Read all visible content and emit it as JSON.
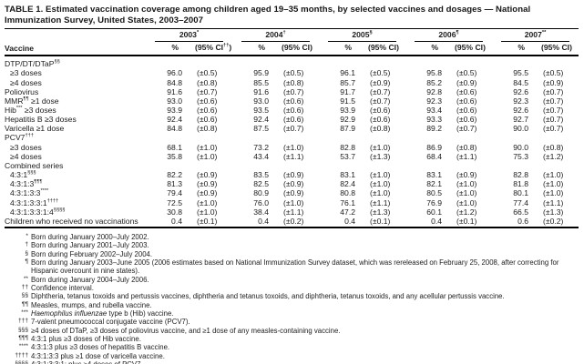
{
  "title": "TABLE 1. Estimated vaccination coverage among children aged 19–35 months, by selected vaccines and dosages — National Immunization Survey, United States, 2003–2007",
  "table": {
    "vaccine_header": "Vaccine",
    "pct_header": "%",
    "years": [
      {
        "label": "2003",
        "marker": "*",
        "ci_pre": "(95% CI",
        "ci_sup": "††",
        "ci_post": ")"
      },
      {
        "label": "2004",
        "marker": "†",
        "ci_pre": "(95% CI",
        "ci_sup": "",
        "ci_post": ")"
      },
      {
        "label": "2005",
        "marker": "§",
        "ci_pre": "(95% CI",
        "ci_sup": "",
        "ci_post": ")"
      },
      {
        "label": "2006",
        "marker": "¶",
        "ci_pre": "(95% CI",
        "ci_sup": "",
        "ci_post": ")"
      },
      {
        "label": "2007",
        "marker": "**",
        "ci_pre": "(95% CI",
        "ci_sup": "",
        "ci_post": ")"
      }
    ],
    "rows": [
      {
        "label": "DTP/DT/DTaP",
        "sup": "§§",
        "section": true,
        "values": []
      },
      {
        "label": "≥3 doses",
        "indent": true,
        "values": [
          [
            "96.0",
            "(±0.5)"
          ],
          [
            "95.9",
            "(±0.5)"
          ],
          [
            "96.1",
            "(±0.5)"
          ],
          [
            "95.8",
            "(±0.5)"
          ],
          [
            "95.5",
            "(±0.5)"
          ]
        ]
      },
      {
        "label": "≥4 doses",
        "indent": true,
        "values": [
          [
            "84.8",
            "(±0.8)"
          ],
          [
            "85.5",
            "(±0.8)"
          ],
          [
            "85.7",
            "(±0.9)"
          ],
          [
            "85.2",
            "(±0.9)"
          ],
          [
            "84.5",
            "(±0.9)"
          ]
        ]
      },
      {
        "label": "Poliovirus",
        "values": [
          [
            "91.6",
            "(±0.7)"
          ],
          [
            "91.6",
            "(±0.7)"
          ],
          [
            "91.7",
            "(±0.7)"
          ],
          [
            "92.8",
            "(±0.6)"
          ],
          [
            "92.6",
            "(±0.7)"
          ]
        ]
      },
      {
        "label": "MMR",
        "sup": "¶¶",
        "label2": "≥1 dose",
        "values": [
          [
            "93.0",
            "(±0.6)"
          ],
          [
            "93.0",
            "(±0.6)"
          ],
          [
            "91.5",
            "(±0.7)"
          ],
          [
            "92.3",
            "(±0.6)"
          ],
          [
            "92.3",
            "(±0.7)"
          ]
        ]
      },
      {
        "label": "Hib",
        "sup": "***",
        "label2": "≥3 doses",
        "values": [
          [
            "93.9",
            "(±0.6)"
          ],
          [
            "93.5",
            "(±0.6)"
          ],
          [
            "93.9",
            "(±0.6)"
          ],
          [
            "93.4",
            "(±0.6)"
          ],
          [
            "92.6",
            "(±0.7)"
          ]
        ]
      },
      {
        "label": "Hepatitis B ≥3 doses",
        "values": [
          [
            "92.4",
            "(±0.6)"
          ],
          [
            "92.4",
            "(±0.6)"
          ],
          [
            "92.9",
            "(±0.6)"
          ],
          [
            "93.3",
            "(±0.6)"
          ],
          [
            "92.7",
            "(±0.7)"
          ]
        ]
      },
      {
        "label": "Varicella ≥1 dose",
        "values": [
          [
            "84.8",
            "(±0.8)"
          ],
          [
            "87.5",
            "(±0.7)"
          ],
          [
            "87.9",
            "(±0.8)"
          ],
          [
            "89.2",
            "(±0.7)"
          ],
          [
            "90.0",
            "(±0.7)"
          ]
        ]
      },
      {
        "label": "PCV7",
        "sup": "†††",
        "section": true,
        "values": []
      },
      {
        "label": "≥3 doses",
        "indent": true,
        "values": [
          [
            "68.1",
            "(±1.0)"
          ],
          [
            "73.2",
            "(±1.0)"
          ],
          [
            "82.8",
            "(±1.0)"
          ],
          [
            "86.9",
            "(±0.8)"
          ],
          [
            "90.0",
            "(±0.8)"
          ]
        ]
      },
      {
        "label": "≥4 doses",
        "indent": true,
        "values": [
          [
            "35.8",
            "(±1.0)"
          ],
          [
            "43.4",
            "(±1.1)"
          ],
          [
            "53.7",
            "(±1.3)"
          ],
          [
            "68.4",
            "(±1.1)"
          ],
          [
            "75.3",
            "(±1.2)"
          ]
        ]
      },
      {
        "label": "Combined series",
        "section": true,
        "values": []
      },
      {
        "label": "4:3:1",
        "sup": "§§§",
        "indent": true,
        "values": [
          [
            "82.2",
            "(±0.9)"
          ],
          [
            "83.5",
            "(±0.9)"
          ],
          [
            "83.1",
            "(±1.0)"
          ],
          [
            "83.1",
            "(±0.9)"
          ],
          [
            "82.8",
            "(±1.0)"
          ]
        ]
      },
      {
        "label": "4:3:1:3",
        "sup": "¶¶¶",
        "indent": true,
        "values": [
          [
            "81.3",
            "(±0.9)"
          ],
          [
            "82.5",
            "(±0.9)"
          ],
          [
            "82.4",
            "(±1.0)"
          ],
          [
            "82.1",
            "(±1.0)"
          ],
          [
            "81.8",
            "(±1.0)"
          ]
        ]
      },
      {
        "label": "4:3:1:3:3",
        "sup": "****",
        "indent": true,
        "values": [
          [
            "79.4",
            "(±0.9)"
          ],
          [
            "80.9",
            "(±0.9)"
          ],
          [
            "80.8",
            "(±1.0)"
          ],
          [
            "80.5",
            "(±1.0)"
          ],
          [
            "80.1",
            "(±1.0)"
          ]
        ]
      },
      {
        "label": "4:3:1:3:3:1",
        "sup": "††††",
        "indent": true,
        "values": [
          [
            "72.5",
            "(±1.0)"
          ],
          [
            "76.0",
            "(±1.0)"
          ],
          [
            "76.1",
            "(±1.1)"
          ],
          [
            "76.9",
            "(±1.0)"
          ],
          [
            "77.4",
            "(±1.1)"
          ]
        ]
      },
      {
        "label": "4:3:1:3:3:1:4",
        "sup": "§§§§",
        "indent": true,
        "values": [
          [
            "30.8",
            "(±1.0)"
          ],
          [
            "38.4",
            "(±1.1)"
          ],
          [
            "47.2",
            "(±1.3)"
          ],
          [
            "60.1",
            "(±1.2)"
          ],
          [
            "66.5",
            "(±1.3)"
          ]
        ]
      },
      {
        "label": "Children who received no vaccinations",
        "values": [
          [
            "0.4",
            "(±0.1)"
          ],
          [
            "0.4",
            "(±0.2)"
          ],
          [
            "0.4",
            "(±0.1)"
          ],
          [
            "0.4",
            "(±0.1)"
          ],
          [
            "0.6",
            "(±0.2)"
          ]
        ]
      }
    ]
  },
  "footnotes": [
    {
      "marker": "*",
      "text": "Born during January 2000–July 2002."
    },
    {
      "marker": "†",
      "text": "Born during January 2001–July 2003."
    },
    {
      "marker": "§",
      "text": "Born during February 2002–July 2004."
    },
    {
      "marker": "¶",
      "text": "Born during January 2003–June 2005 (2006 estimates based on National Immunization Survey dataset, which was rereleased on February 25, 2008, after correcting for Hispanic overcount in nine states)."
    },
    {
      "marker": "**",
      "text": "Born during January 2004–July 2006."
    },
    {
      "marker": "††",
      "text": "Confidence interval."
    },
    {
      "marker": "§§",
      "text": "Diphtheria, tetanus toxoids and pertussis vaccines, diphtheria and tetanus toxoids, and diphtheria, tetanus toxoids, and any acellular pertussis vaccine."
    },
    {
      "marker": "¶¶",
      "text": "Measles, mumps, and rubella vaccine."
    },
    {
      "marker": "***",
      "italic": "Haemophilus influenzae",
      "rest": " type b (Hib) vaccine."
    },
    {
      "marker": "†††",
      "text": "7-valent pneumococcal conjugate vaccine (PCV7)."
    },
    {
      "marker": "§§§",
      "text": "≥4 doses of DTaP, ≥3 doses of poliovirus vaccine, and ≥1 dose of any measles-containing vaccine."
    },
    {
      "marker": "¶¶¶",
      "text": "4:3:1 plus ≥3 doses of Hib vaccine."
    },
    {
      "marker": "****",
      "text": "4:3:1:3 plus ≥3 doses of hepatitis B vaccine."
    },
    {
      "marker": "††††",
      "text": "4:3:1:3:3 plus ≥1 dose of varicella vaccine."
    },
    {
      "marker": "§§§§",
      "text": "4:3:1:3:3:1: plus ≥4 doses of PCV7."
    }
  ]
}
